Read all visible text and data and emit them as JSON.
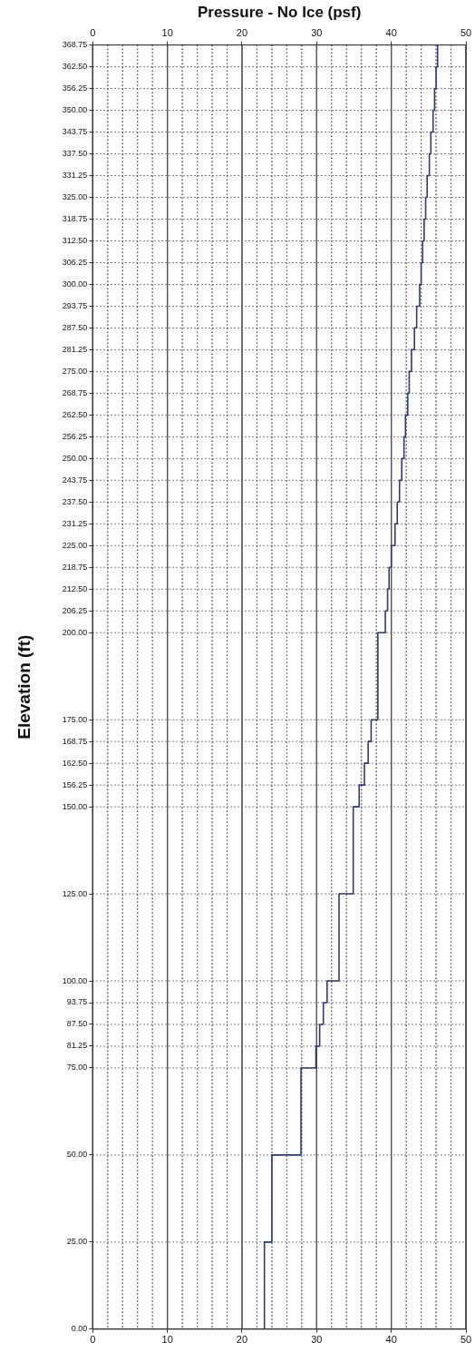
{
  "chart_data": {
    "type": "line",
    "x2label": "Pressure - No Ice (psf)",
    "ylabel": "Elevation (ft)",
    "series": [
      {
        "color": "#2b3a78",
        "x": [
          23,
          23,
          24,
          24,
          27.9,
          27.9,
          29.9,
          29.9,
          30.4,
          30.4,
          30.9,
          30.9,
          31.4,
          31.4,
          33,
          33,
          34.9,
          34.9,
          35.7,
          35.7,
          36.4,
          36.4,
          36.9,
          36.9,
          37.3,
          37.3,
          38.2,
          38.2,
          39.2,
          39.2,
          39.5,
          39.5,
          39.7,
          39.7,
          40,
          40,
          40.5,
          40.5,
          40.8,
          40.8,
          41.1,
          41.1,
          41.4,
          41.4,
          41.7,
          41.7,
          41.9,
          41.9,
          42.2,
          42.2,
          42.4,
          42.4,
          42.7,
          42.7,
          43.1,
          43.1,
          43.4,
          43.4,
          43.8,
          43.8,
          44,
          44,
          44.2,
          44.2,
          44.4,
          44.4,
          44.6,
          44.6,
          44.8,
          44.8,
          45.1,
          45.1,
          45.3,
          45.3,
          45.6,
          45.6,
          45.8,
          45.8,
          46,
          46,
          46.2,
          46.2
        ],
        "values": [
          0,
          25,
          25,
          50,
          50,
          75,
          75,
          81.25,
          81.25,
          87.5,
          87.5,
          93.75,
          93.75,
          100,
          100,
          125,
          125,
          150,
          150,
          156.25,
          156.25,
          162.5,
          162.5,
          168.75,
          168.75,
          175,
          175,
          200,
          200,
          206.25,
          206.25,
          212.5,
          212.5,
          218.75,
          218.75,
          225,
          225,
          231.25,
          231.25,
          237.5,
          237.5,
          243.75,
          243.75,
          250,
          250,
          256.25,
          256.25,
          262.5,
          262.5,
          268.75,
          268.75,
          275,
          275,
          281.25,
          281.25,
          287.5,
          287.5,
          293.75,
          293.75,
          300,
          300,
          306.25,
          306.25,
          312.5,
          312.5,
          318.75,
          318.75,
          325,
          325,
          331.25,
          331.25,
          337.5,
          337.5,
          343.75,
          343.75,
          350,
          350,
          356.25,
          356.25,
          362.5,
          362.5,
          368.75
        ]
      }
    ],
    "xlim": [
      0,
      50
    ],
    "xticks": [
      0,
      {
        "value": 2,
        "label": null
      },
      {
        "value": 4,
        "label": null
      },
      {
        "value": 6,
        "label": null
      },
      {
        "value": 8,
        "label": null
      },
      10,
      {
        "value": 12,
        "label": null
      },
      {
        "value": 14,
        "label": null
      },
      {
        "value": 16,
        "label": null
      },
      {
        "value": 18,
        "label": null
      },
      20,
      {
        "value": 22,
        "label": null
      },
      {
        "value": 24,
        "label": null
      },
      {
        "value": 26,
        "label": null
      },
      {
        "value": 28,
        "label": null
      },
      30,
      {
        "value": 32,
        "label": null
      },
      {
        "value": 34,
        "label": null
      },
      {
        "value": 36,
        "label": null
      },
      {
        "value": 38,
        "label": null
      },
      40,
      {
        "value": 42,
        "label": null
      },
      {
        "value": 44,
        "label": null
      },
      {
        "value": 46,
        "label": null
      },
      {
        "value": 48,
        "label": null
      },
      50
    ],
    "x2lim": [
      0,
      50
    ],
    "x2ticks": [
      0,
      {
        "value": 2,
        "label": null
      },
      {
        "value": 4,
        "label": null
      },
      {
        "value": 6,
        "label": null
      },
      {
        "value": 8,
        "label": null
      },
      10,
      {
        "value": 12,
        "label": null
      },
      {
        "value": 14,
        "label": null
      },
      {
        "value": 16,
        "label": null
      },
      {
        "value": 18,
        "label": null
      },
      20,
      {
        "value": 22,
        "label": null
      },
      {
        "value": 24,
        "label": null
      },
      {
        "value": 26,
        "label": null
      },
      {
        "value": 28,
        "label": null
      },
      30,
      {
        "value": 32,
        "label": null
      },
      {
        "value": 34,
        "label": null
      },
      {
        "value": 36,
        "label": null
      },
      {
        "value": 38,
        "label": null
      },
      40,
      {
        "value": 42,
        "label": null
      },
      {
        "value": 44,
        "label": null
      },
      {
        "value": 46,
        "label": null
      },
      {
        "value": 48,
        "label": null
      },
      50
    ],
    "ylim": [
      0,
      368.75
    ],
    "yticks": [
      {
        "value": 0,
        "label": "0.00"
      },
      {
        "value": 25,
        "label": "25.00"
      },
      {
        "value": 50,
        "label": "50.00"
      },
      {
        "value": 75,
        "label": "75.00"
      },
      {
        "value": 81.25,
        "label": "81.25"
      },
      {
        "value": 87.5,
        "label": "87.50"
      },
      {
        "value": 93.75,
        "label": "93.75"
      },
      {
        "value": 100,
        "label": "100.00"
      },
      {
        "value": 125,
        "label": "125.00"
      },
      {
        "value": 150,
        "label": "150.00"
      },
      {
        "value": 156.25,
        "label": "156.25"
      },
      {
        "value": 162.5,
        "label": "162.50"
      },
      {
        "value": 168.75,
        "label": "168.75"
      },
      {
        "value": 175,
        "label": "175.00"
      },
      {
        "value": 200,
        "label": "200.00"
      },
      {
        "value": 206.25,
        "label": "206.25"
      },
      {
        "value": 212.5,
        "label": "212.50"
      },
      {
        "value": 218.75,
        "label": "218.75"
      },
      {
        "value": 225,
        "label": "225.00"
      },
      {
        "value": 231.25,
        "label": "231.25"
      },
      {
        "value": 237.5,
        "label": "237.50"
      },
      {
        "value": 243.75,
        "label": "243.75"
      },
      {
        "value": 250,
        "label": "250.00"
      },
      {
        "value": 256.25,
        "label": "256.25"
      },
      {
        "value": 262.5,
        "label": "262.50"
      },
      {
        "value": 268.75,
        "label": "268.75"
      },
      {
        "value": 275,
        "label": "275.00"
      },
      {
        "value": 281.25,
        "label": "281.25"
      },
      {
        "value": 287.5,
        "label": "287.50"
      },
      {
        "value": 293.75,
        "label": "293.75"
      },
      {
        "value": 300,
        "label": "300.00"
      },
      {
        "value": 306.25,
        "label": "306.25"
      },
      {
        "value": 312.5,
        "label": "312.50"
      },
      {
        "value": 318.75,
        "label": "318.75"
      },
      {
        "value": 325,
        "label": "325.00"
      },
      {
        "value": 331.25,
        "label": "331.25"
      },
      {
        "value": 337.5,
        "label": "337.50"
      },
      {
        "value": 343.75,
        "label": "343.75"
      },
      {
        "value": 350,
        "label": "350.00"
      },
      {
        "value": 356.25,
        "label": "356.25"
      },
      {
        "value": 362.5,
        "label": "362.50"
      },
      {
        "value": 368.75,
        "label": "368.75"
      }
    ],
    "grid": true,
    "marker": "none",
    "line_style": "solid"
  }
}
